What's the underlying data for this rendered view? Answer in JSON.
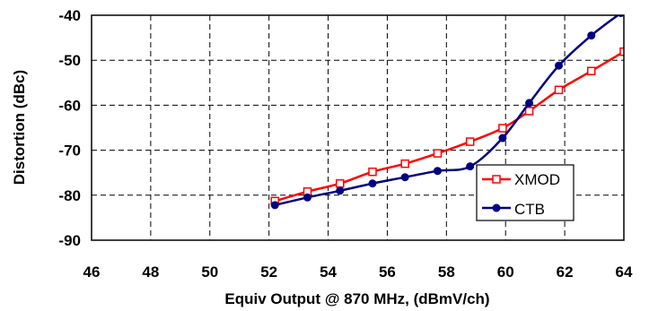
{
  "chart_data": {
    "type": "line",
    "title": "",
    "xlabel": "Equiv Output @ 870 MHz, (dBmV/ch)",
    "ylabel": "Distortion (dBc)",
    "xlim": [
      46,
      64
    ],
    "ylim": [
      -90,
      -40
    ],
    "x_ticks": [
      "46",
      "48",
      "50",
      "52",
      "54",
      "56",
      "58",
      "60",
      "62",
      "64"
    ],
    "y_ticks": [
      "-40",
      "-50",
      "-60",
      "-70",
      "-80",
      "-90"
    ],
    "grid": true,
    "legend": "bottom-right",
    "series": [
      {
        "name": "XMOD",
        "color": "#ff0000",
        "marker": "open-square",
        "x": [
          52.2,
          53.3,
          54.4,
          55.5,
          56.6,
          57.7,
          58.8,
          59.9,
          60.8,
          61.8,
          62.9,
          64.0
        ],
        "y": [
          -81.3,
          -79.2,
          -77.4,
          -74.8,
          -73.0,
          -70.7,
          -68.1,
          -65.1,
          -61.3,
          -56.6,
          -52.4,
          -48.1
        ]
      },
      {
        "name": "CTB",
        "color": "#000080",
        "marker": "filled-circle",
        "x": [
          52.2,
          53.3,
          54.4,
          55.5,
          56.6,
          57.7,
          58.8,
          59.9,
          60.8,
          61.8,
          62.9,
          63.9
        ],
        "y": [
          -82.2,
          -80.5,
          -79.0,
          -77.4,
          -76.0,
          -74.6,
          -73.6,
          -67.3,
          -59.5,
          -51.2,
          -44.5,
          -39.5
        ]
      }
    ]
  }
}
